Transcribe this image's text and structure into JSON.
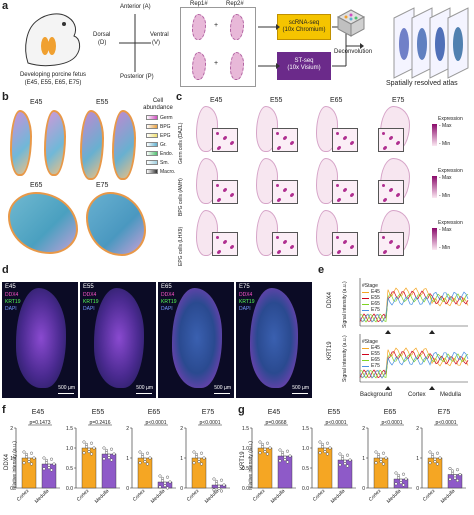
{
  "panel_a": {
    "label": "a",
    "fetus_caption_1": "Developing porcine fetus",
    "fetus_caption_2": "(E45, E55, E65, E75)",
    "axis_anterior": "Anterior (A)",
    "axis_posterior": "Posterior (P)",
    "axis_dorsal": "Dorsal",
    "axis_dorsal_abbr": "(D)",
    "axis_ventral": "Ventral",
    "axis_ventral_abbr": "(V)",
    "rep1": "Rep1#",
    "rep2": "Rep2#",
    "scrna_1": "scRNA-seq",
    "scrna_2": "(10x Chromium)",
    "stseq_1": "ST-seq",
    "stseq_2": "(10x Visium)",
    "deconvolution": "Deconvolution",
    "atlas": "Spatially resolved atlas",
    "colors": {
      "scrna": "#f5c400",
      "stseq": "#6b2a8a"
    }
  },
  "panel_b": {
    "label": "b",
    "stages": [
      "E45",
      "E55",
      "E65",
      "E75"
    ],
    "legend_title_1": "Cell",
    "legend_title_2": "abundance",
    "legend": [
      {
        "name": "Germ",
        "color": "#d04cc0"
      },
      {
        "name": "BPG",
        "color": "#e8a040"
      },
      {
        "name": "EPG",
        "color": "#f0e070"
      },
      {
        "name": "Gr.",
        "color": "#60b0d0"
      },
      {
        "name": "Endo.",
        "color": "#50c070"
      },
      {
        "name": "Sm.",
        "color": "#a0d0e0"
      },
      {
        "name": "Macro.",
        "color": "#333333"
      }
    ]
  },
  "panel_c": {
    "label": "c",
    "stages": [
      "E45",
      "E55",
      "E65",
      "E75"
    ],
    "rows": [
      "Germ cells (DAZL)",
      "BPG cells (AMH)",
      "EPG cells (LHX9)"
    ],
    "expression": "Expression",
    "max": "Max",
    "min": "Min"
  },
  "panel_d": {
    "label": "d",
    "images": [
      {
        "stage": "E45",
        "m1": "DDX4",
        "m2": "KRT19",
        "m3": "DAPI",
        "scale": "500 µm"
      },
      {
        "stage": "E55",
        "m1": "DDX4",
        "m2": "KRT19",
        "m3": "DAPI",
        "scale": "500 µm"
      },
      {
        "stage": "E65",
        "m1": "DDX4",
        "m2": "KRT19",
        "m3": "DAPI",
        "scale": "500 µm"
      },
      {
        "stage": "E75",
        "m1": "DDX4",
        "m2": "KRT19",
        "m3": "DAPI",
        "scale": "500 µm"
      }
    ]
  },
  "panel_e": {
    "label": "e",
    "ylabel_top": "DDX4",
    "ylabel_bottom": "KRT19",
    "ylabel_axis": "Signal intensity (a.u.)",
    "legend_title": "#Stage",
    "series": [
      {
        "name": "E45",
        "color": "#f5a623"
      },
      {
        "name": "E55",
        "color": "#d0021b"
      },
      {
        "name": "E65",
        "color": "#7ed321"
      },
      {
        "name": "E75",
        "color": "#4a90e2"
      }
    ],
    "regions": [
      "Background",
      "Cortex",
      "Medulla"
    ]
  },
  "panel_f": {
    "label": "f",
    "ylabel_1": "DDX4",
    "ylabel_2": "relative intensity (a.u.)",
    "charts": [
      {
        "stage": "E45",
        "p": "p=0.1473"
      },
      {
        "stage": "E55",
        "p": "p=0.2416"
      },
      {
        "stage": "E65",
        "p": "p<0.0001"
      },
      {
        "stage": "E75",
        "p": "p<0.0001"
      }
    ]
  },
  "panel_g": {
    "label": "g",
    "ylabel_1": "KRT19",
    "ylabel_2": "relative intensity (a.u.)",
    "charts": [
      {
        "stage": "E45",
        "p": "p=0.0668"
      },
      {
        "stage": "E55",
        "p": "p<0.0001"
      },
      {
        "stage": "E65",
        "p": "p<0.0001"
      },
      {
        "stage": "E75",
        "p": "p<0.0001"
      }
    ]
  },
  "chart_data": [
    {
      "type": "bar",
      "title": "E45",
      "categories": [
        "Cortex",
        "Medulla"
      ],
      "values": [
        1.0,
        0.8
      ],
      "ylim": [
        0,
        2.0
      ],
      "yticks": [
        "0",
        "1",
        "2"
      ]
    },
    {
      "type": "bar",
      "title": "E55",
      "categories": [
        "Cortex",
        "Medulla"
      ],
      "values": [
        1.0,
        0.85
      ],
      "ylim": [
        0,
        1.5
      ],
      "yticks": [
        "0.0",
        "0.5",
        "1.0",
        "1.5"
      ]
    },
    {
      "type": "bar",
      "title": "E65",
      "categories": [
        "Cortex",
        "Medulla"
      ],
      "values": [
        1.0,
        0.2
      ],
      "ylim": [
        0,
        2.0
      ],
      "yticks": [
        "0",
        "1",
        "2"
      ]
    },
    {
      "type": "bar",
      "title": "E75",
      "categories": [
        "Cortex",
        "Medulla"
      ],
      "values": [
        1.0,
        0.1
      ],
      "ylim": [
        0,
        2.0
      ],
      "yticks": [
        "0",
        "1",
        "2"
      ]
    },
    {
      "type": "bar",
      "title": "E45",
      "categories": [
        "Cortex",
        "Medulla"
      ],
      "values": [
        1.0,
        0.8
      ],
      "ylim": [
        0,
        1.5
      ],
      "yticks": [
        "0.0",
        "0.5",
        "1.0",
        "1.5"
      ]
    },
    {
      "type": "bar",
      "title": "E55",
      "categories": [
        "Cortex",
        "Medulla"
      ],
      "values": [
        1.0,
        0.7
      ],
      "ylim": [
        0,
        1.5
      ],
      "yticks": [
        "0.0",
        "0.5",
        "1.0",
        "1.5"
      ]
    },
    {
      "type": "bar",
      "title": "E65",
      "categories": [
        "Cortex",
        "Medulla"
      ],
      "values": [
        1.0,
        0.3
      ],
      "ylim": [
        0,
        2.0
      ],
      "yticks": [
        "0",
        "1",
        "2"
      ]
    },
    {
      "type": "bar",
      "title": "E75",
      "categories": [
        "Cortex",
        "Medulla"
      ],
      "values": [
        1.0,
        0.45
      ],
      "ylim": [
        0,
        2.0
      ],
      "yticks": [
        "0",
        "1",
        "2"
      ]
    }
  ]
}
